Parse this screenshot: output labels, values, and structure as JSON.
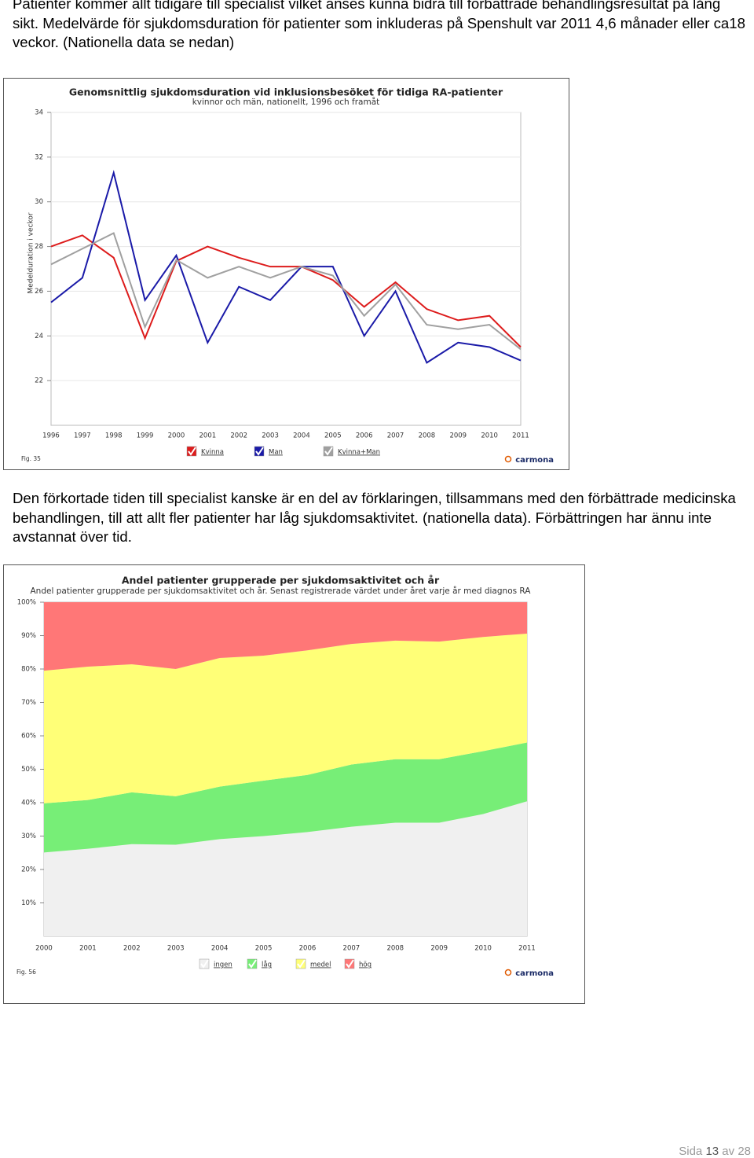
{
  "text_1": "Patienter kommer allt tidigare till specialist vilket anses kunna bidra till förbättrade behandlingsresultat på lång sikt. Medelvärde för sjukdomsduration för patienter som inkluderas på Spenshult var 2011 4,6 månader eller ca18 veckor. (Nationella data se nedan)",
  "chart_data": [
    {
      "type": "line",
      "title": "Genomsnittlig sjukdomsduration vid inklusionsbesöket för tidiga RA-patienter",
      "subtitle": "kvinnor och män, nationellt, 1996 och framåt",
      "ylabel": "Medelduration i veckor",
      "categories": [
        "1996",
        "1997",
        "1998",
        "1999",
        "2000",
        "2001",
        "2002",
        "2003",
        "2004",
        "2005",
        "2006",
        "2007",
        "2008",
        "2009",
        "2010",
        "2011"
      ],
      "series": [
        {
          "name": "Kvinna",
          "color": "#dd1c1c",
          "values": [
            28.0,
            28.5,
            27.5,
            23.9,
            27.35,
            28.0,
            27.5,
            27.1,
            27.1,
            26.5,
            25.3,
            26.4,
            25.2,
            24.7,
            24.9,
            23.5
          ]
        },
        {
          "name": "Man",
          "color": "#1a1aa8",
          "values": [
            25.5,
            26.6,
            31.3,
            25.6,
            27.6,
            23.7,
            26.2,
            25.6,
            27.1,
            27.1,
            24.0,
            26.0,
            22.8,
            23.7,
            23.5,
            22.9
          ]
        },
        {
          "name": "Kvinna+Man",
          "color": "#a0a0a0",
          "values": [
            27.2,
            27.9,
            28.6,
            24.4,
            27.4,
            26.6,
            27.1,
            26.6,
            27.1,
            26.7,
            24.9,
            26.3,
            24.5,
            24.3,
            24.5,
            23.4
          ]
        }
      ],
      "ylim": [
        20,
        34
      ],
      "yticks": [
        22,
        24,
        26,
        28,
        30,
        32,
        34
      ],
      "grid": true,
      "figure_label": "Fig. 35",
      "logo": "carmona"
    },
    {
      "type": "area",
      "stacked": true,
      "title": "Andel patienter grupperade per sjukdomsaktivitet och år",
      "subtitle": "Andel patienter grupperade per sjukdomsaktivitet och år. Senast registrerade värdet under året varje år med diagnos RA",
      "categories": [
        "2000",
        "2001",
        "2002",
        "2003",
        "2004",
        "2005",
        "2006",
        "2007",
        "2008",
        "2009",
        "2010",
        "2011"
      ],
      "series": [
        {
          "name": "ingen",
          "color": "#f0f0f0",
          "values": [
            25.1,
            26.2,
            27.6,
            27.4,
            29.1,
            30.0,
            31.2,
            32.8,
            34.0,
            34.0,
            36.6,
            40.4
          ]
        },
        {
          "name": "låg",
          "color": "#77ee77",
          "values": [
            14.7,
            14.6,
            15.5,
            14.5,
            15.7,
            16.6,
            17.1,
            18.6,
            19.0,
            19.0,
            18.8,
            17.6
          ]
        },
        {
          "name": "medel",
          "color": "#ffff77",
          "values": [
            39.7,
            39.9,
            38.3,
            38.1,
            38.5,
            37.4,
            37.3,
            36.1,
            35.5,
            35.2,
            34.2,
            32.6
          ]
        },
        {
          "name": "hög",
          "color": "#ff7777",
          "values": [
            20.5,
            19.3,
            18.6,
            20.0,
            16.7,
            16.0,
            14.4,
            12.5,
            11.5,
            11.8,
            10.4,
            9.4
          ]
        }
      ],
      "ylim": [
        0,
        100
      ],
      "yticks": [
        {
          "value": 10,
          "label": "10%"
        },
        {
          "value": 20,
          "label": "20%"
        },
        {
          "value": 30,
          "label": "30%"
        },
        {
          "value": 40,
          "label": "40%"
        },
        {
          "value": 50,
          "label": "50%"
        },
        {
          "value": 60,
          "label": "60%"
        },
        {
          "value": 70,
          "label": "70%"
        },
        {
          "value": 80,
          "label": "80%"
        },
        {
          "value": 90,
          "label": "90%"
        },
        {
          "value": 100,
          "label": "100%"
        }
      ],
      "grid": false,
      "figure_label": "Fig. 56",
      "logo": "carmona"
    }
  ],
  "text_2": "Den förkortade tiden till specialist kanske är en del av förklaringen, tillsammans med den förbättrade medicinska behandlingen, till att allt fler patienter har låg sjukdomsaktivitet. (nationella data). Förbättringen har ännu inte avstannat över tid.",
  "footer": {
    "label": "Sida",
    "page": "13",
    "of": "av",
    "total": "28"
  }
}
